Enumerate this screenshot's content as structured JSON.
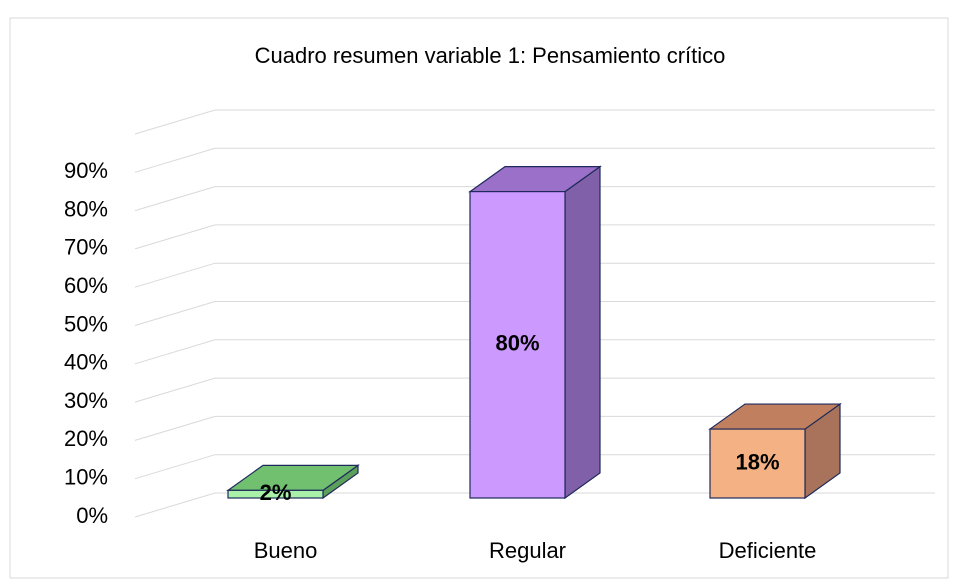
{
  "chart_data": {
    "type": "bar3d",
    "title": "Cuadro resumen variable 1: Pensamiento crítico",
    "categories": [
      "Bueno",
      "Regular",
      "Deficiente"
    ],
    "values": [
      2,
      80,
      18
    ],
    "value_labels": [
      "2%",
      "80%",
      "18%"
    ],
    "colors": [
      "#a9f0a9",
      "#cc99ff",
      "#f4b183"
    ],
    "side_colors": [
      "#5aa05a",
      "#8060a8",
      "#a8735a"
    ],
    "top_colors": [
      "#70c070",
      "#9a70c8",
      "#c08060"
    ],
    "ylim": [
      0,
      100
    ],
    "yticks": [
      {
        "value": 0,
        "label": "0%"
      },
      {
        "value": 10,
        "label": "10%"
      },
      {
        "value": 20,
        "label": "20%"
      },
      {
        "value": 30,
        "label": "30%"
      },
      {
        "value": 40,
        "label": "40%"
      },
      {
        "value": 50,
        "label": "50%"
      },
      {
        "value": 60,
        "label": "60%"
      },
      {
        "value": 70,
        "label": "70%"
      },
      {
        "value": 80,
        "label": "80%"
      },
      {
        "value": 90,
        "label": "90%"
      }
    ],
    "grid": true
  }
}
